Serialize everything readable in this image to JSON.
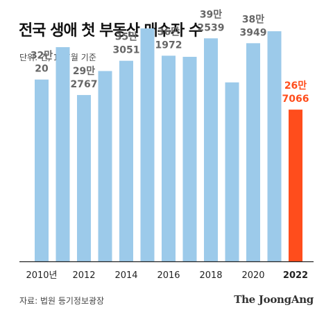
{
  "header": {
    "title": "전국 생애 첫 부동산 매수자 수",
    "subtitle": "단위: 건, 1~7월 기준"
  },
  "footer": {
    "source": "자료: 법원 등기정보광장",
    "brand": "The JoongAng"
  },
  "colors": {
    "bar": "#9ccaea",
    "highlight": "#ff4d1c",
    "label": "#666666",
    "axis": "#222222"
  },
  "chart_data": {
    "type": "bar",
    "title": "전국 생애 첫 부동산 매수자 수",
    "subtitle": "단위: 건, 1~7월 기준",
    "categories": [
      "2010",
      "2011",
      "2012",
      "2013",
      "2014",
      "2015",
      "2016",
      "2017",
      "2018",
      "2019",
      "2020",
      "2021",
      "2022"
    ],
    "values": [
      320020,
      377000,
      292767,
      335000,
      353051,
      410000,
      361972,
      360000,
      392539,
      315000,
      383949,
      405000,
      267066
    ],
    "tick_labels": [
      "2010년",
      "",
      "2012",
      "",
      "2014",
      "",
      "2016",
      "",
      "2018",
      "",
      "2020",
      "",
      "2022"
    ],
    "data_labels": [
      [
        "32만",
        "20"
      ],
      null,
      [
        "29만",
        "2767"
      ],
      null,
      [
        "35만",
        "3051"
      ],
      null,
      [
        "36만",
        "1972"
      ],
      null,
      [
        "39만",
        "2539"
      ],
      null,
      [
        "38만",
        "3949"
      ],
      null,
      [
        "26만",
        "7066"
      ]
    ],
    "highlight_index": 12,
    "ylim": [
      0,
      460000
    ],
    "grid": false,
    "legend": "none"
  }
}
